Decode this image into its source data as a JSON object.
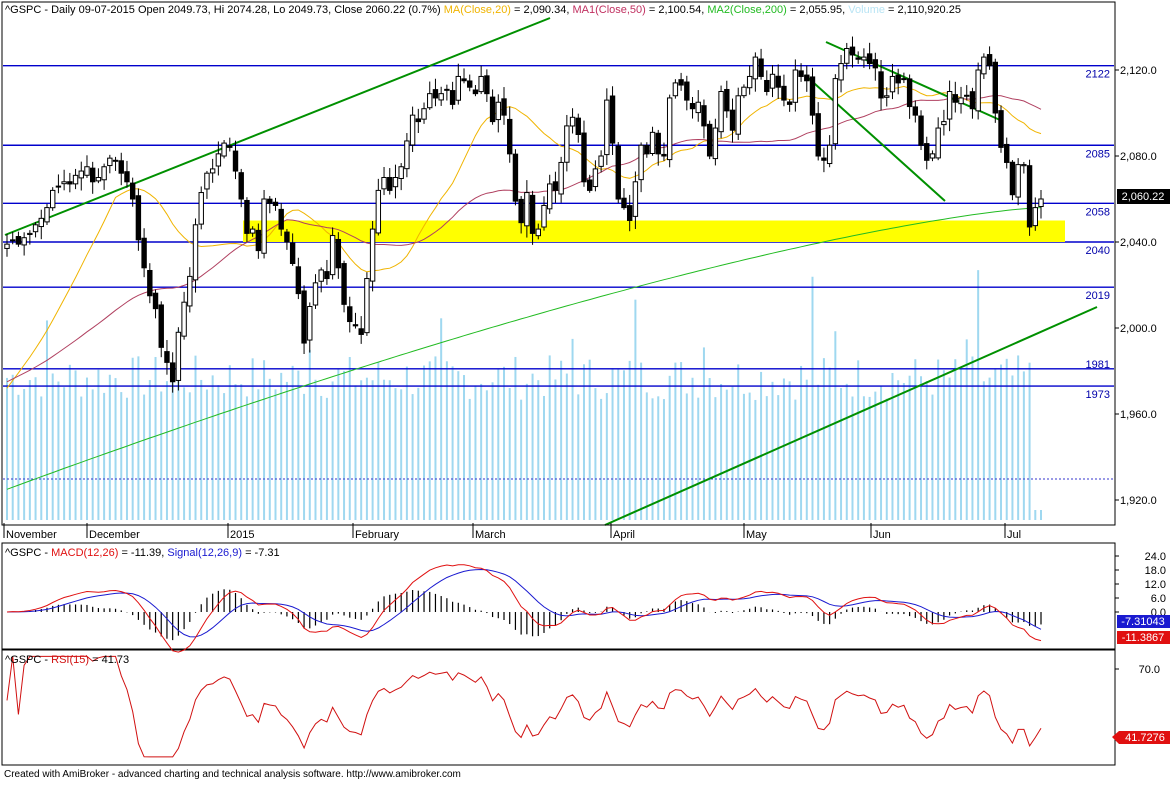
{
  "colors": {
    "up_candle": "#ffffff",
    "down_candle": "#000000",
    "ma20": "#f0b400",
    "ma50": "#b04060",
    "ma200": "#22bb22",
    "volume": "#9fd8f0",
    "hline": "#0000cc",
    "trendline": "#009000",
    "support_zone": "#ffff00",
    "macd": "#1a1ad0",
    "signal": "#e01010",
    "rsi": "#d01010"
  },
  "price_panel": {
    "header_parts": {
      "main": "^GSPC - Daily 09-07-2015 Open 2049.73, Hi 2074.28, Lo 2049.73, Close 2060.22 (0.7%)",
      "ma20_label": "MA(Close,20)",
      "ma20_value": " = 2,090.34, ",
      "ma50_label": "MA1(Close,50)",
      "ma50_value": " = 2,100.54, ",
      "ma200_label": "MA2(Close,200)",
      "ma200_value": " = 2,055.95, ",
      "volume_label": "Volume",
      "volume_value": " = 2,110,920.25"
    },
    "current_price_label": "2,060.22",
    "y_ticks": [
      "2,120.0",
      "2,080.0",
      "2,040.0",
      "2,000.0",
      "1,960.0",
      "1,920.0"
    ],
    "hline_labels": [
      "2122",
      "2085",
      "2058",
      "2040",
      "2019",
      "1981",
      "1973"
    ],
    "month_labels": [
      "November",
      "December",
      "2015",
      "February",
      "March",
      "April",
      "May",
      "Jun",
      "Jul"
    ]
  },
  "chart_data": [
    {
      "type": "candlestick",
      "panel": "price",
      "title": "^GSPC - Daily 09-07-2015",
      "ylim": [
        1905,
        2145
      ],
      "y_ticks": [
        2120,
        2080,
        2040,
        2000,
        1960,
        1920
      ],
      "horizontal_levels": [
        2122,
        2085,
        2058,
        2040,
        2019,
        1981,
        1973
      ],
      "support_zone": [
        2040,
        2050
      ],
      "last": {
        "open": 2049.73,
        "high": 2074.28,
        "low": 2049.73,
        "close": 2060.22,
        "change_pct": 0.7
      },
      "moving_averages": [
        {
          "name": "MA(Close,20)",
          "value": 2090.34
        },
        {
          "name": "MA1(Close,50)",
          "value": 2100.54
        },
        {
          "name": "MA2(Close,200)",
          "value": 2055.95
        }
      ],
      "volume": 2110920.25,
      "closes": [
        2039,
        2041,
        2039,
        2042,
        2044,
        2048,
        2051,
        2056,
        2064,
        2066,
        2068,
        2067,
        2071,
        2073,
        2075,
        2068,
        2070,
        2075,
        2079,
        2078,
        2072,
        2068,
        2060,
        2041,
        2028,
        2015,
        2009,
        1991,
        1984,
        1975,
        1998,
        2012,
        2024,
        2048,
        2063,
        2072,
        2074,
        2081,
        2086,
        2084,
        2073,
        2060,
        2044,
        2046,
        2036,
        2060,
        2058,
        2057,
        2046,
        2040,
        2030,
        2016,
        1993,
        2010,
        2021,
        2027,
        2023,
        2043,
        2028,
        2011,
        2003,
        2001,
        1997,
        2023,
        2046,
        2064,
        2070,
        2064,
        2070,
        2075,
        2087,
        2099,
        2096,
        2102,
        2109,
        2107,
        2109,
        2111,
        2104,
        2117,
        2115,
        2112,
        2109,
        2117,
        2109,
        2096,
        2105,
        2099,
        2081,
        2059,
        2049,
        2063,
        2044,
        2046,
        2057,
        2067,
        2064,
        2077,
        2094,
        2098,
        2090,
        2068,
        2064,
        2074,
        2080,
        2106,
        2086,
        2060,
        2056,
        2050,
        2068,
        2085,
        2081,
        2091,
        2081,
        2080,
        2107,
        2114,
        2113,
        2106,
        2102,
        2105,
        2094,
        2080,
        2093,
        2110,
        2101,
        2092,
        2108,
        2112,
        2117,
        2126,
        2117,
        2110,
        2118,
        2112,
        2106,
        2104,
        2120,
        2117,
        2115,
        2099,
        2080,
        2078,
        2085,
        2116,
        2123,
        2130,
        2127,
        2125,
        2126,
        2123,
        2121,
        2107,
        2108,
        2117,
        2114,
        2116,
        2103,
        2099,
        2085,
        2078,
        2081,
        2093,
        2096,
        2110,
        2105,
        2107,
        2108,
        2102,
        2120,
        2126,
        2122,
        2100,
        2084,
        2077,
        2062,
        2076,
        2076,
        2047,
        2056,
        2060
      ],
      "ma20_visible_range": [
        1972,
        2115
      ],
      "ma200_visible_range": [
        1925,
        2056
      ]
    },
    {
      "type": "line",
      "panel": "macd",
      "title": "MACD(12,26)",
      "series": [
        {
          "name": "MACD(12,26)",
          "last": -11.39
        },
        {
          "name": "Signal(12,26,9)",
          "last": -7.31
        }
      ],
      "y_ticks": [
        24,
        18,
        12,
        6,
        0
      ],
      "ylim": [
        -22,
        27
      ],
      "value_labels": [
        "-7.31043",
        "-11.3867"
      ]
    },
    {
      "type": "line",
      "panel": "rsi",
      "title": "RSI(15)",
      "series": [
        {
          "name": "RSI(15)",
          "last": 41.73
        }
      ],
      "y_ticks": [
        70
      ],
      "ylim": [
        25,
        78
      ],
      "value_label": "41.7276"
    }
  ],
  "macd_panel": {
    "header_prefix": "^GSPC - ",
    "macd_label": "MACD(12,26)",
    "macd_value": " = -11.39, ",
    "signal_label": "Signal(12,26,9)",
    "signal_value": " = -7.31",
    "y_ticks": [
      "24.0",
      "18.0",
      "12.0",
      "6.0",
      "0.0"
    ],
    "value_labels": [
      "-7.31043",
      "-11.3867"
    ]
  },
  "rsi_panel": {
    "header_prefix": "^GSPC - ",
    "rsi_label": "RSI(15)",
    "rsi_value": " = 41.73",
    "y_ticks": [
      "70.0"
    ],
    "value_label": "41.7276"
  },
  "footer": {
    "text": "Created with AmiBroker - advanced charting and technical analysis software. http://www.amibroker.com"
  }
}
